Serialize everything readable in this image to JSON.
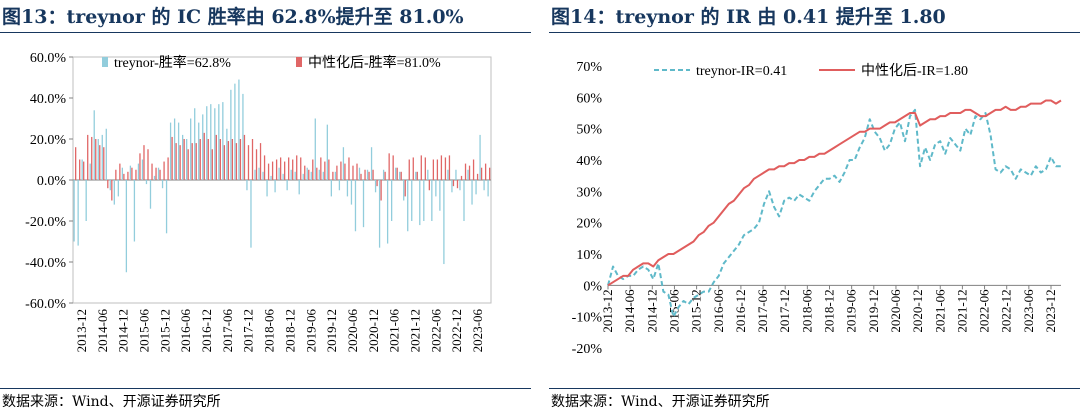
{
  "panels": [
    {
      "title": "图13：treynor 的 IC 胜率由 62.8%提升至 81.0%",
      "source": "数据来源：Wind、开源证券研究所"
    },
    {
      "title": "图14：treynor 的 IR 由 0.41 提升至 1.80",
      "source": "数据来源：Wind、开源证券研究所"
    }
  ],
  "chart_data": [
    {
      "type": "bar",
      "ylim": [
        -0.6,
        0.6
      ],
      "ytick_labels": [
        "60.0%",
        "40.0%",
        "20.0%",
        "0.0%",
        "-20.0%",
        "-40.0%",
        "-60.0%"
      ],
      "x_tick_labels": [
        "2013-12",
        "2014-06",
        "2014-12",
        "2015-06",
        "2015-12",
        "2016-06",
        "2016-12",
        "2017-06",
        "2017-12",
        "2018-06",
        "2018-12",
        "2019-06",
        "2019-12",
        "2020-06",
        "2020-12",
        "2021-06",
        "2021-12",
        "2022-06",
        "2022-12",
        "2023-06"
      ],
      "legend_position": "top",
      "series": [
        {
          "name": "treynor-胜率=62.8%",
          "color": "#92cddc",
          "values": [
            -0.3,
            -0.32,
            0.1,
            -0.2,
            0.08,
            0.34,
            0.2,
            0.22,
            0.25,
            -0.05,
            -0.12,
            -0.08,
            0.06,
            -0.45,
            0.07,
            -0.3,
            0.08,
            0.1,
            -0.02,
            -0.14,
            0.02,
            0.06,
            -0.04,
            -0.26,
            0.28,
            0.3,
            0.28,
            0.22,
            0.2,
            0.3,
            0.35,
            0.28,
            0.32,
            0.36,
            0.37,
            0.35,
            0.37,
            0.38,
            0.25,
            0.44,
            0.47,
            0.49,
            0.42,
            -0.05,
            -0.33,
            0.05,
            0.06,
            0.04,
            -0.08,
            0.02,
            -0.06,
            0.06,
            0.03,
            -0.05,
            0.05,
            0.04,
            -0.07,
            0.03,
            0.06,
            0.04,
            0.3,
            0.05,
            0.04,
            0.27,
            -0.08,
            0.04,
            -0.05,
            0.16,
            -0.08,
            -0.12,
            -0.25,
            0.06,
            -0.23,
            0.05,
            0.16,
            -0.06,
            -0.33,
            0.05,
            -0.31,
            -0.2,
            0.06,
            0.04,
            -0.1,
            -0.25,
            -0.2,
            0.04,
            -0.22,
            -0.2,
            0.05,
            -0.2,
            -0.08,
            -0.15,
            -0.41,
            0.05,
            -0.06,
            0.05,
            -0.05,
            -0.2,
            0.05,
            -0.12,
            -0.07,
            0.22,
            -0.05,
            -0.08
          ]
        },
        {
          "name": "中性化后-胜率=81.0%",
          "color": "#e06666",
          "values": [
            0.16,
            0.1,
            0.09,
            0.22,
            0.21,
            0.2,
            0.17,
            0.16,
            -0.04,
            -0.1,
            0.05,
            0.08,
            0.03,
            0.04,
            0.06,
            0.05,
            0.13,
            0.17,
            0.15,
            0.08,
            0.06,
            0.05,
            0.09,
            0.11,
            0.21,
            0.18,
            0.17,
            0.2,
            0.15,
            0.18,
            0.18,
            0.2,
            0.23,
            0.2,
            0.15,
            0.22,
            0.2,
            0.17,
            0.19,
            0.2,
            0.18,
            0.2,
            0.22,
            0.17,
            0.2,
            0.15,
            0.18,
            0.12,
            0.08,
            0.09,
            0.1,
            0.11,
            0.09,
            0.11,
            0.1,
            0.12,
            0.11,
            0.07,
            0.05,
            0.1,
            0.06,
            0.11,
            0.09,
            0.1,
            0.04,
            0.07,
            0.09,
            0.08,
            0.11,
            0.07,
            0.08,
            0.03,
            0.05,
            0.04,
            0.05,
            -0.03,
            -0.1,
            0.04,
            0.13,
            0.12,
            0.06,
            0.04,
            -0.08,
            0.1,
            0.11,
            0.04,
            0.12,
            0.11,
            -0.05,
            0.1,
            0.1,
            0.12,
            0.11,
            0.12,
            -0.03,
            -0.04,
            0.02,
            0.08,
            0.07,
            0.1,
            0.03,
            0.06,
            0.08,
            0.06
          ]
        }
      ]
    },
    {
      "type": "line",
      "ylim": [
        -0.2,
        0.7
      ],
      "ytick_labels": [
        "70%",
        "60%",
        "50%",
        "40%",
        "30%",
        "20%",
        "10%",
        "0%",
        "-10%",
        "-20%"
      ],
      "x_tick_labels": [
        "2013-12",
        "2014-06",
        "2014-12",
        "2015-06",
        "2015-12",
        "2016-06",
        "2016-12",
        "2017-06",
        "2017-12",
        "2018-06",
        "2018-12",
        "2019-06",
        "2019-12",
        "2020-06",
        "2020-12",
        "2021-06",
        "2021-12",
        "2022-06",
        "2022-12",
        "2023-06",
        "2023-12"
      ],
      "legend_position": "top",
      "series": [
        {
          "name": "treynor-IR=0.41",
          "color": "#5fb9c9",
          "style": "dashed",
          "values": [
            0.0,
            0.06,
            0.03,
            0.02,
            0.03,
            0.03,
            0.05,
            0.06,
            0.05,
            0.02,
            0.07,
            -0.02,
            -0.03,
            -0.1,
            -0.07,
            -0.05,
            -0.06,
            -0.04,
            -0.03,
            -0.02,
            -0.02,
            0.01,
            0.03,
            0.07,
            0.09,
            0.11,
            0.13,
            0.16,
            0.17,
            0.18,
            0.2,
            0.26,
            0.3,
            0.25,
            0.22,
            0.27,
            0.28,
            0.27,
            0.29,
            0.28,
            0.27,
            0.3,
            0.32,
            0.34,
            0.34,
            0.35,
            0.33,
            0.36,
            0.4,
            0.4,
            0.44,
            0.47,
            0.53,
            0.49,
            0.47,
            0.43,
            0.45,
            0.5,
            0.52,
            0.46,
            0.54,
            0.56,
            0.38,
            0.44,
            0.4,
            0.45,
            0.46,
            0.42,
            0.47,
            0.45,
            0.43,
            0.5,
            0.48,
            0.54,
            0.53,
            0.55,
            0.48,
            0.37,
            0.36,
            0.38,
            0.37,
            0.34,
            0.37,
            0.36,
            0.35,
            0.38,
            0.36,
            0.37,
            0.41,
            0.38,
            0.38
          ]
        },
        {
          "name": "中性化后-IR=1.80",
          "color": "#e05d5d",
          "style": "solid",
          "values": [
            0.0,
            0.01,
            0.02,
            0.03,
            0.03,
            0.05,
            0.06,
            0.07,
            0.07,
            0.06,
            0.08,
            0.09,
            0.1,
            0.1,
            0.11,
            0.12,
            0.13,
            0.14,
            0.16,
            0.17,
            0.19,
            0.2,
            0.22,
            0.24,
            0.26,
            0.27,
            0.29,
            0.31,
            0.32,
            0.34,
            0.35,
            0.36,
            0.37,
            0.37,
            0.38,
            0.38,
            0.39,
            0.39,
            0.4,
            0.4,
            0.41,
            0.41,
            0.42,
            0.42,
            0.43,
            0.44,
            0.45,
            0.46,
            0.47,
            0.48,
            0.49,
            0.49,
            0.5,
            0.5,
            0.5,
            0.51,
            0.52,
            0.52,
            0.53,
            0.54,
            0.55,
            0.55,
            0.51,
            0.52,
            0.53,
            0.53,
            0.54,
            0.54,
            0.55,
            0.55,
            0.55,
            0.56,
            0.56,
            0.55,
            0.54,
            0.54,
            0.55,
            0.56,
            0.56,
            0.57,
            0.56,
            0.56,
            0.57,
            0.57,
            0.58,
            0.58,
            0.58,
            0.59,
            0.59,
            0.58,
            0.59
          ]
        }
      ]
    }
  ]
}
